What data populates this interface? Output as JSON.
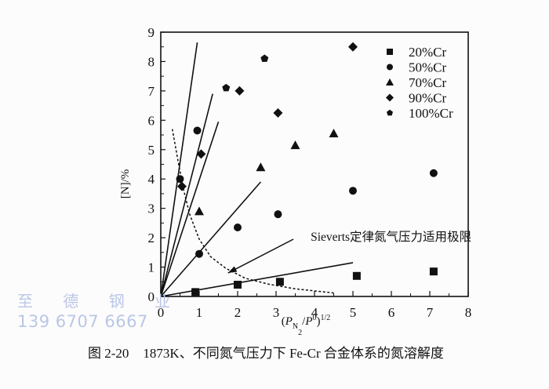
{
  "chart_data": {
    "type": "scatter",
    "title": "",
    "caption_number": "图 2-20",
    "caption_text": "1873K、不同氮气压力下 Fe-Cr 合金体系的氮溶解度",
    "xlabel": "(P_N2/P^0)^1/2",
    "ylabel": "[N]/%",
    "xlim": [
      0,
      8
    ],
    "ylim": [
      0,
      9
    ],
    "xticks": [
      "0",
      "1",
      "2",
      "3",
      "4",
      "5",
      "6",
      "7",
      "8"
    ],
    "yticks": [
      "0",
      "1",
      "2",
      "3",
      "4",
      "5",
      "6",
      "7",
      "8",
      "9"
    ],
    "grid": false,
    "legend_position": "upper right",
    "series": [
      {
        "name": "20%Cr",
        "marker": "square",
        "points": [
          [
            0.9,
            0.15
          ],
          [
            2.0,
            0.4
          ],
          [
            3.1,
            0.5
          ],
          [
            5.1,
            0.7
          ],
          [
            7.1,
            0.85
          ]
        ]
      },
      {
        "name": "50%Cr",
        "marker": "circle",
        "points": [
          [
            0.5,
            4.0
          ],
          [
            0.95,
            5.65
          ],
          [
            1.0,
            1.45
          ],
          [
            2.0,
            2.35
          ],
          [
            3.05,
            2.8
          ],
          [
            5.0,
            3.6
          ],
          [
            7.1,
            4.2
          ]
        ]
      },
      {
        "name": "70%Cr",
        "marker": "triangle",
        "points": [
          [
            1.0,
            2.9
          ],
          [
            2.6,
            4.4
          ],
          [
            3.5,
            5.15
          ],
          [
            4.5,
            5.55
          ]
        ]
      },
      {
        "name": "90%Cr",
        "marker": "diamond",
        "points": [
          [
            0.55,
            3.75
          ],
          [
            1.05,
            4.85
          ],
          [
            2.05,
            7.0
          ],
          [
            3.05,
            6.25
          ],
          [
            5.0,
            8.5
          ]
        ]
      },
      {
        "name": "100%Cr",
        "marker": "pentagon",
        "points": [
          [
            1.7,
            7.1
          ],
          [
            2.7,
            8.1
          ]
        ]
      }
    ],
    "fit_lines": [
      {
        "from": [
          0,
          0
        ],
        "to": [
          0.95,
          8.65
        ]
      },
      {
        "from": [
          0,
          0
        ],
        "to": [
          1.35,
          6.9
        ]
      },
      {
        "from": [
          0,
          0
        ],
        "to": [
          1.5,
          5.95
        ]
      },
      {
        "from": [
          0,
          0
        ],
        "to": [
          2.6,
          3.9
        ]
      },
      {
        "from": [
          0,
          0
        ],
        "to": [
          5.0,
          1.15
        ]
      }
    ],
    "sieverts_limit_curve": {
      "style": "dashed",
      "points": [
        [
          0.3,
          5.7
        ],
        [
          0.45,
          4.6
        ],
        [
          0.6,
          3.6
        ],
        [
          0.75,
          2.8
        ],
        [
          1.0,
          1.95
        ],
        [
          1.3,
          1.35
        ],
        [
          1.7,
          0.95
        ],
        [
          2.2,
          0.62
        ],
        [
          2.8,
          0.42
        ],
        [
          3.5,
          0.26
        ],
        [
          4.5,
          0.12
        ]
      ]
    },
    "annotation": {
      "text": "Sieverts定律氮气压力适用极限",
      "text_pos": [
        3.9,
        2.05
      ],
      "arrow_from": [
        3.45,
        1.95
      ],
      "arrow_to": [
        1.75,
        0.8
      ]
    }
  },
  "legend": {
    "items": [
      "20%Cr",
      "50%Cr",
      "70%Cr",
      "90%Cr",
      "100%Cr"
    ]
  },
  "watermark": {
    "line1": "至 德 钢 业",
    "line2": "139 6707 6667"
  },
  "colors": {
    "ink": "#111111",
    "watermark": "#b9c6e6",
    "background": "#fdfcfc"
  }
}
